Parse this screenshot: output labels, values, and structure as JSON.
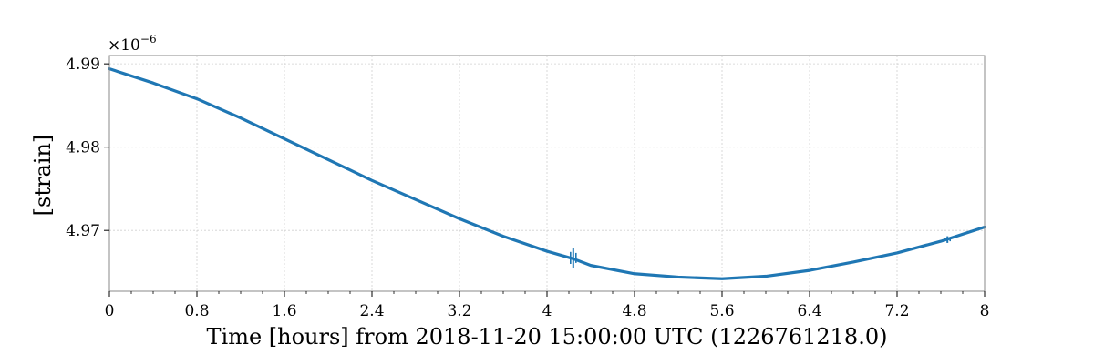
{
  "chart_data": {
    "type": "line",
    "xlabel": "Time [hours] from 2018-11-20 15:00:00 UTC (1226761218.0)",
    "ylabel": "[strain]",
    "y_scale_label": "×10",
    "y_scale_exponent": "−6",
    "xlim": [
      0,
      8
    ],
    "ylim": [
      4.9627,
      4.991
    ],
    "x_ticks": [
      0,
      0.8,
      1.6,
      2.4,
      3.2,
      4,
      4.8,
      5.6,
      6.4,
      7.2,
      8
    ],
    "x_tick_labels": [
      "0",
      "0.8",
      "1.6",
      "2.4",
      "3.2",
      "4",
      "4.8",
      "5.6",
      "6.4",
      "7.2",
      "8"
    ],
    "y_ticks": [
      4.97,
      4.98,
      4.99
    ],
    "y_tick_labels": [
      "4.97",
      "4.98",
      "4.99"
    ],
    "grid": true,
    "series": [
      {
        "color": "#1f77b4",
        "x": [
          0,
          0.4,
          0.8,
          1.2,
          1.6,
          2.0,
          2.4,
          2.8,
          3.2,
          3.6,
          4.0,
          4.24,
          4.4,
          4.8,
          5.2,
          5.6,
          6.0,
          6.4,
          6.8,
          7.2,
          7.6,
          8.0
        ],
        "y": [
          4.9894,
          4.9877,
          4.9858,
          4.9835,
          4.981,
          4.9785,
          4.976,
          4.9737,
          4.9714,
          4.9693,
          4.9675,
          4.9666,
          4.9658,
          4.9648,
          4.9644,
          4.9642,
          4.9645,
          4.9652,
          4.9662,
          4.9673,
          4.9687,
          4.9704
        ]
      }
    ],
    "annotations": [
      {
        "type": "glitch",
        "x": 4.24,
        "y": 4.9667,
        "amplitude": 0.0012
      },
      {
        "type": "glitch",
        "x": 7.66,
        "y": 4.9689,
        "amplitude": 0.0004
      }
    ]
  }
}
